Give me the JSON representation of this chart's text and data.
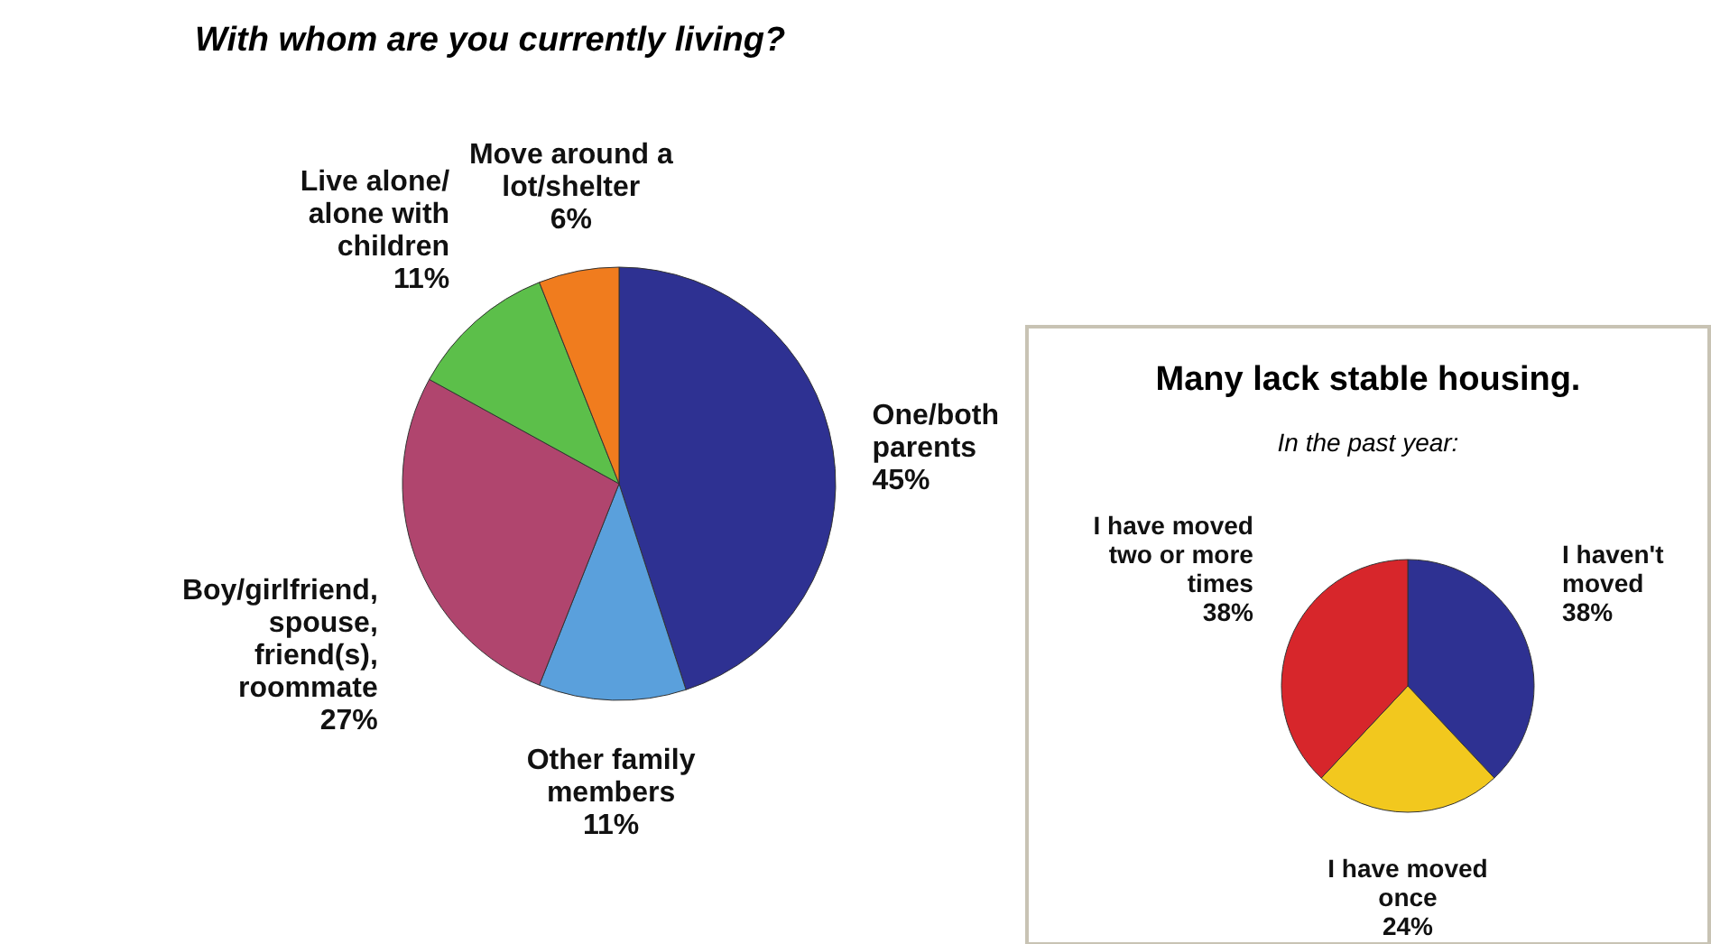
{
  "chart_data": [
    {
      "type": "pie",
      "title": "With whom are you currently living?",
      "categories": [
        "One/both parents",
        "Other family members",
        "Boy/girlfriend, spouse, friend(s), roommate",
        "Live alone/ alone with children",
        "Move around a lot/shelter"
      ],
      "values": [
        45,
        11,
        27,
        11,
        6
      ],
      "value_labels": [
        "45%",
        "11%",
        "27%",
        "11%",
        "6%"
      ],
      "colors": [
        "#2e3192",
        "#5aa0dc",
        "#b0456e",
        "#5cbf4a",
        "#f07c1e"
      ]
    },
    {
      "type": "pie",
      "title": "Many lack stable housing.",
      "subtitle": "In the past year:",
      "categories": [
        "I haven't moved",
        "I have moved once",
        "I have moved two or more times"
      ],
      "values": [
        38,
        24,
        38
      ],
      "value_labels": [
        "38%",
        "24%",
        "38%"
      ],
      "colors": [
        "#2e3192",
        "#f2c81e",
        "#d7262b"
      ]
    }
  ]
}
